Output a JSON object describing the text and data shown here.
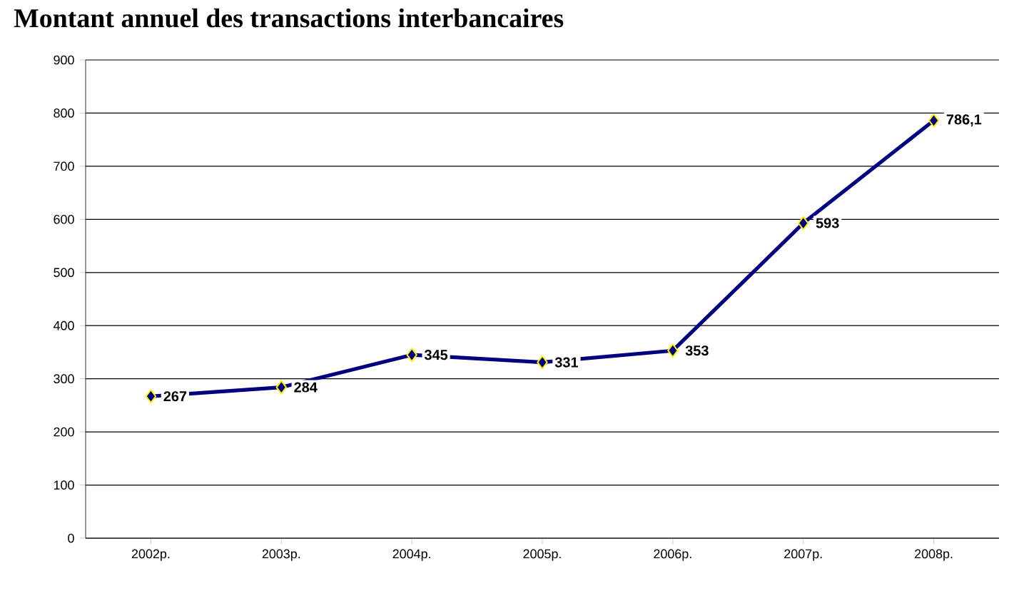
{
  "chart_data": {
    "type": "line",
    "title": "Montant annuel des transactions interbancaires",
    "categories": [
      "2002р.",
      "2003р.",
      "2004р.",
      "2005р.",
      "2006р.",
      "2007р.",
      "2008р."
    ],
    "values": [
      267,
      284,
      345,
      331,
      353,
      593,
      786.1
    ],
    "value_labels": [
      "267",
      "284",
      "345",
      "331",
      "353",
      "593",
      "786,1"
    ],
    "color": "#000080",
    "marker": "diamond",
    "line_style": "solid",
    "grid": "y",
    "ylim": [
      0,
      900
    ],
    "yticks": [
      0,
      100,
      200,
      300,
      400,
      500,
      600,
      700,
      800,
      900
    ]
  }
}
